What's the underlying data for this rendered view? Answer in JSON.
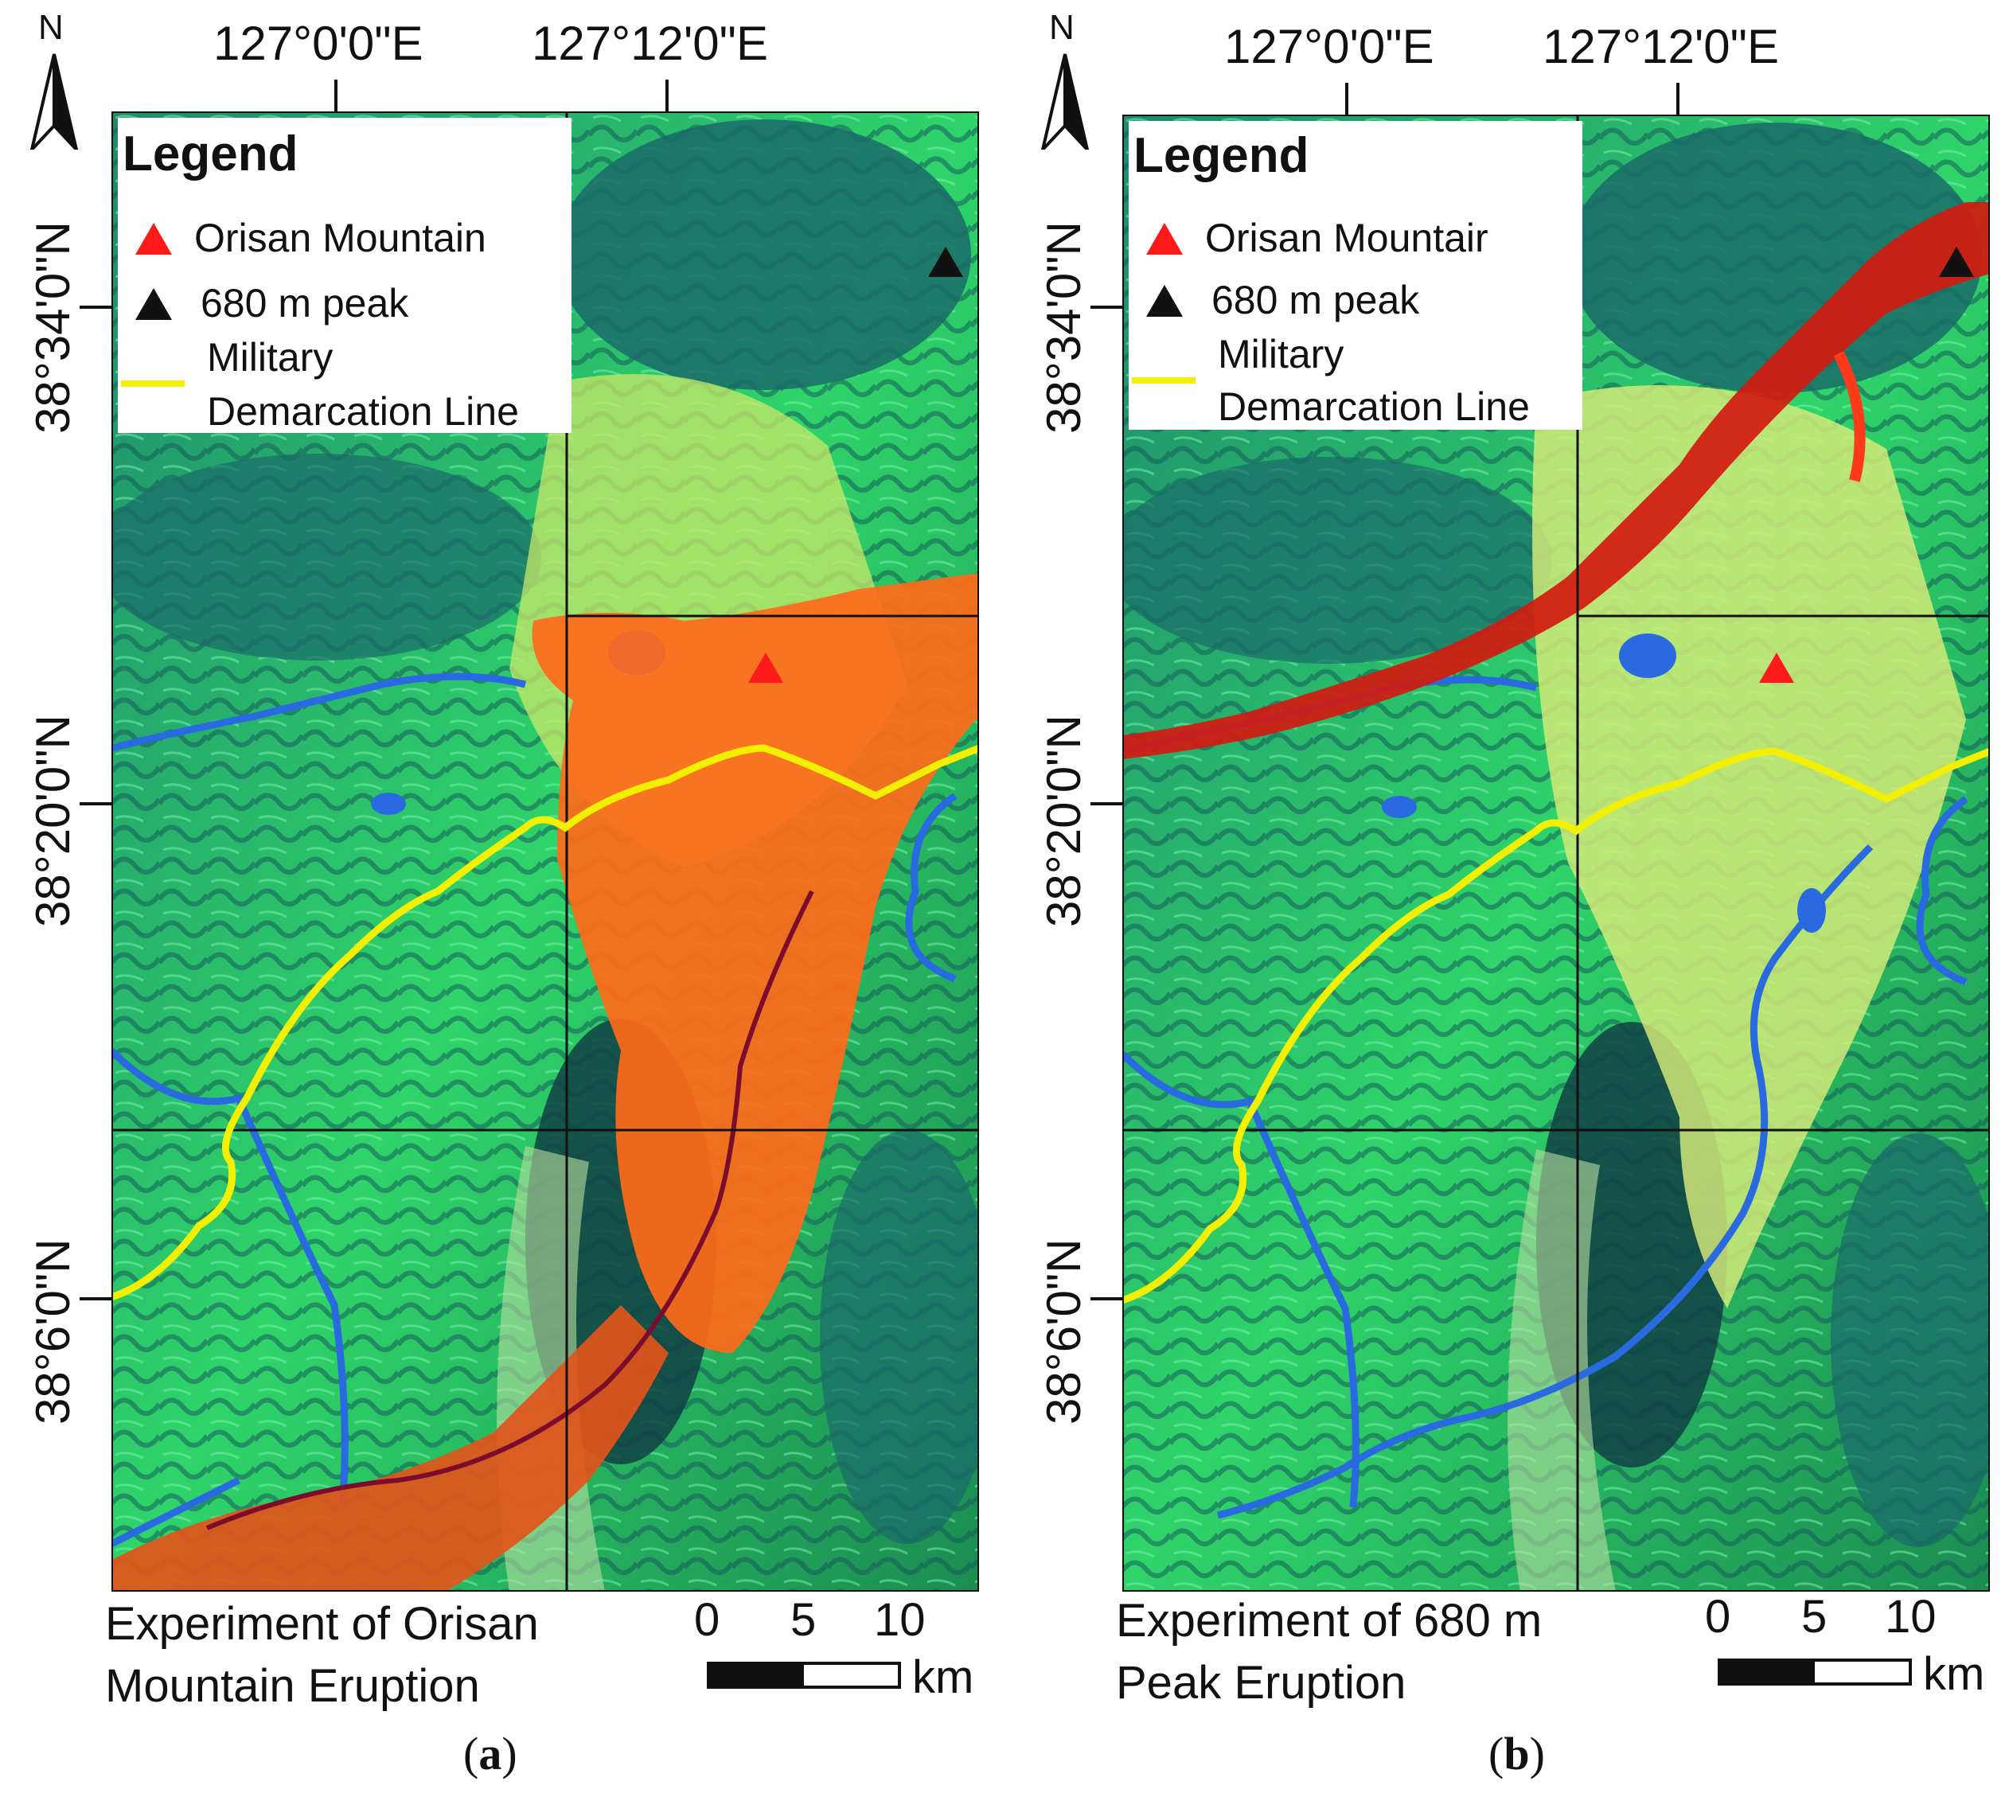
{
  "panels": [
    {
      "id": "a",
      "north_label": "N",
      "lon_labels": [
        "127°0'0\"E",
        "127°12'0\"E"
      ],
      "lat_labels": [
        "38°34'0\"N",
        "38°20'0\"N",
        "38°6'0\"N"
      ],
      "legend": {
        "title": "Legend",
        "orisan": "Orisan Mountain",
        "peak": "680 m peak",
        "mdl_line1": "Military",
        "mdl_line2": "Demarcation Line"
      },
      "caption_line1": "Experiment of Orisan",
      "caption_line2": "Mountain Eruption",
      "scale": {
        "ticks": [
          "0",
          "5",
          "10"
        ],
        "unit": "km"
      },
      "label_letter": "a",
      "flow_source": "Orisan Mountain"
    },
    {
      "id": "b",
      "north_label": "N",
      "lon_labels": [
        "127°0'0\"E",
        "127°12'0\"E"
      ],
      "lat_labels": [
        "38°34'0\"N",
        "38°20'0\"N",
        "38°6'0\"N"
      ],
      "legend": {
        "title": "Legend",
        "orisan": "Orisan Mountair",
        "peak": "680 m peak",
        "mdl_line1": "Military",
        "mdl_line2": "Demarcation Line"
      },
      "caption_line1": "Experiment of 680 m",
      "caption_line2": "Peak Eruption",
      "scale": {
        "ticks": [
          "0",
          "5",
          "10"
        ],
        "unit": "km"
      },
      "label_letter": "b",
      "flow_source": "680 m peak"
    }
  ],
  "colors": {
    "terrain_green": "#2fd46a",
    "terrain_dark": "#1a6b6a",
    "valley_yellow": "#c8e86a",
    "river_blue": "#2a6ae0",
    "mdl_yellow": "#f2f000",
    "lava_orange": "#ff6a1a",
    "lava_red": "#d21a10",
    "orisan_marker": "#ff1a1a",
    "peak_marker": "#111111"
  },
  "icons": [
    "north-arrow-icon",
    "red-triangle-icon",
    "black-triangle-icon",
    "yellow-line-icon"
  ]
}
